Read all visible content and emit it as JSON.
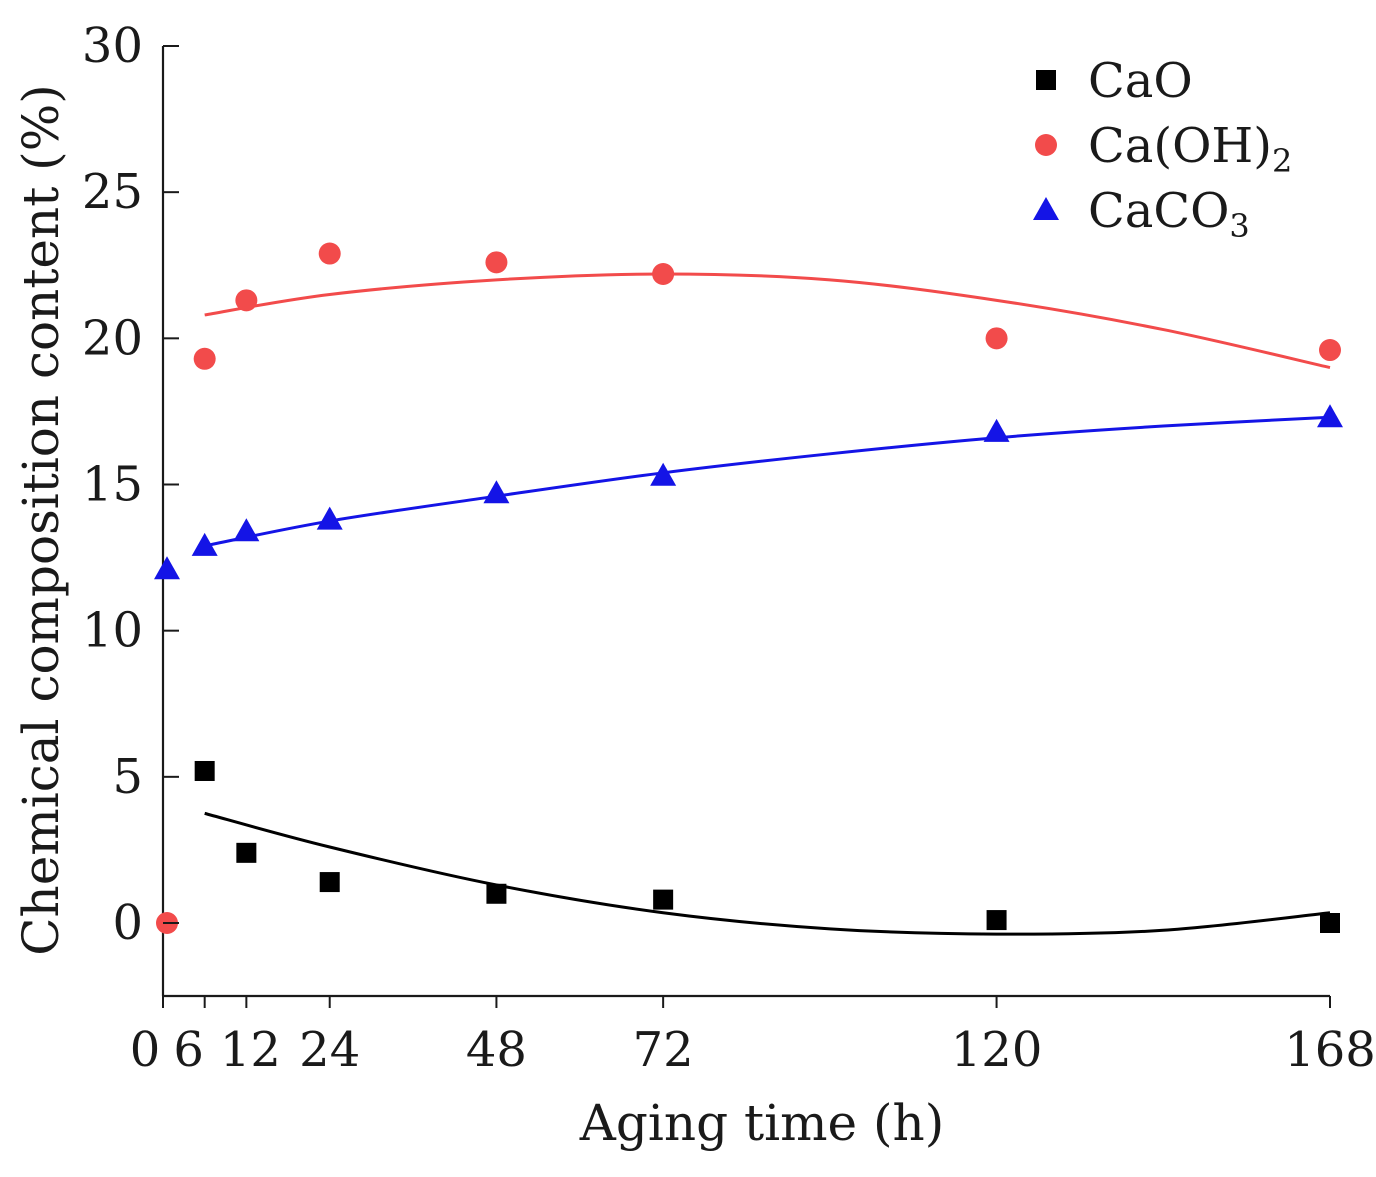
{
  "chart_data": {
    "type": "scatter",
    "title": "",
    "xlabel": "Aging time (h)",
    "ylabel": "Chemical composition content (%)",
    "xlim": [
      0,
      168
    ],
    "ylim": [
      -2.6,
      30
    ],
    "xticks": [
      0,
      6,
      12,
      24,
      48,
      72,
      120,
      168
    ],
    "yticks": [
      0,
      5,
      10,
      15,
      20,
      25,
      30
    ],
    "legend_position": "top-right",
    "series": [
      {
        "name": "CaO",
        "label_main": "CaO",
        "label_sub": "",
        "marker": "square",
        "color": "#000000",
        "points": [
          {
            "x": 6,
            "y": 5.2
          },
          {
            "x": 12,
            "y": 2.4
          },
          {
            "x": 24,
            "y": 1.4
          },
          {
            "x": 48,
            "y": 1.0
          },
          {
            "x": 72,
            "y": 0.8
          },
          {
            "x": 120,
            "y": 0.1
          },
          {
            "x": 168,
            "y": 0.0
          }
        ],
        "fit": [
          {
            "x": 6,
            "y": 3.75
          },
          {
            "x": 24,
            "y": 2.6
          },
          {
            "x": 48,
            "y": 1.3
          },
          {
            "x": 72,
            "y": 0.35
          },
          {
            "x": 96,
            "y": -0.2
          },
          {
            "x": 120,
            "y": -0.38
          },
          {
            "x": 144,
            "y": -0.25
          },
          {
            "x": 168,
            "y": 0.35
          }
        ]
      },
      {
        "name": "Ca(OH)2",
        "label_main": "Ca(OH)",
        "label_sub": "2",
        "marker": "circle",
        "color": "#f24b4b",
        "points": [
          {
            "x": 0,
            "y": 0.0
          },
          {
            "x": 6,
            "y": 19.3
          },
          {
            "x": 12,
            "y": 21.3
          },
          {
            "x": 24,
            "y": 22.9
          },
          {
            "x": 48,
            "y": 22.6
          },
          {
            "x": 72,
            "y": 22.2
          },
          {
            "x": 120,
            "y": 20.0
          },
          {
            "x": 168,
            "y": 19.6
          }
        ],
        "fit": [
          {
            "x": 6,
            "y": 20.8
          },
          {
            "x": 24,
            "y": 21.5
          },
          {
            "x": 48,
            "y": 22.0
          },
          {
            "x": 72,
            "y": 22.2
          },
          {
            "x": 96,
            "y": 22.0
          },
          {
            "x": 120,
            "y": 21.3
          },
          {
            "x": 144,
            "y": 20.3
          },
          {
            "x": 168,
            "y": 19.0
          }
        ]
      },
      {
        "name": "CaCO3",
        "label_main": "CaCO",
        "label_sub": "3",
        "marker": "triangle",
        "color": "#1414e6",
        "points": [
          {
            "x": 0,
            "y": 12.1
          },
          {
            "x": 6,
            "y": 12.9
          },
          {
            "x": 12,
            "y": 13.4
          },
          {
            "x": 24,
            "y": 13.8
          },
          {
            "x": 48,
            "y": 14.7
          },
          {
            "x": 72,
            "y": 15.3
          },
          {
            "x": 120,
            "y": 16.8
          },
          {
            "x": 168,
            "y": 17.3
          }
        ],
        "fit": [
          {
            "x": 6,
            "y": 12.9
          },
          {
            "x": 24,
            "y": 13.75
          },
          {
            "x": 48,
            "y": 14.6
          },
          {
            "x": 72,
            "y": 15.4
          },
          {
            "x": 96,
            "y": 16.05
          },
          {
            "x": 120,
            "y": 16.6
          },
          {
            "x": 144,
            "y": 17.0
          },
          {
            "x": 168,
            "y": 17.3
          }
        ]
      }
    ]
  }
}
